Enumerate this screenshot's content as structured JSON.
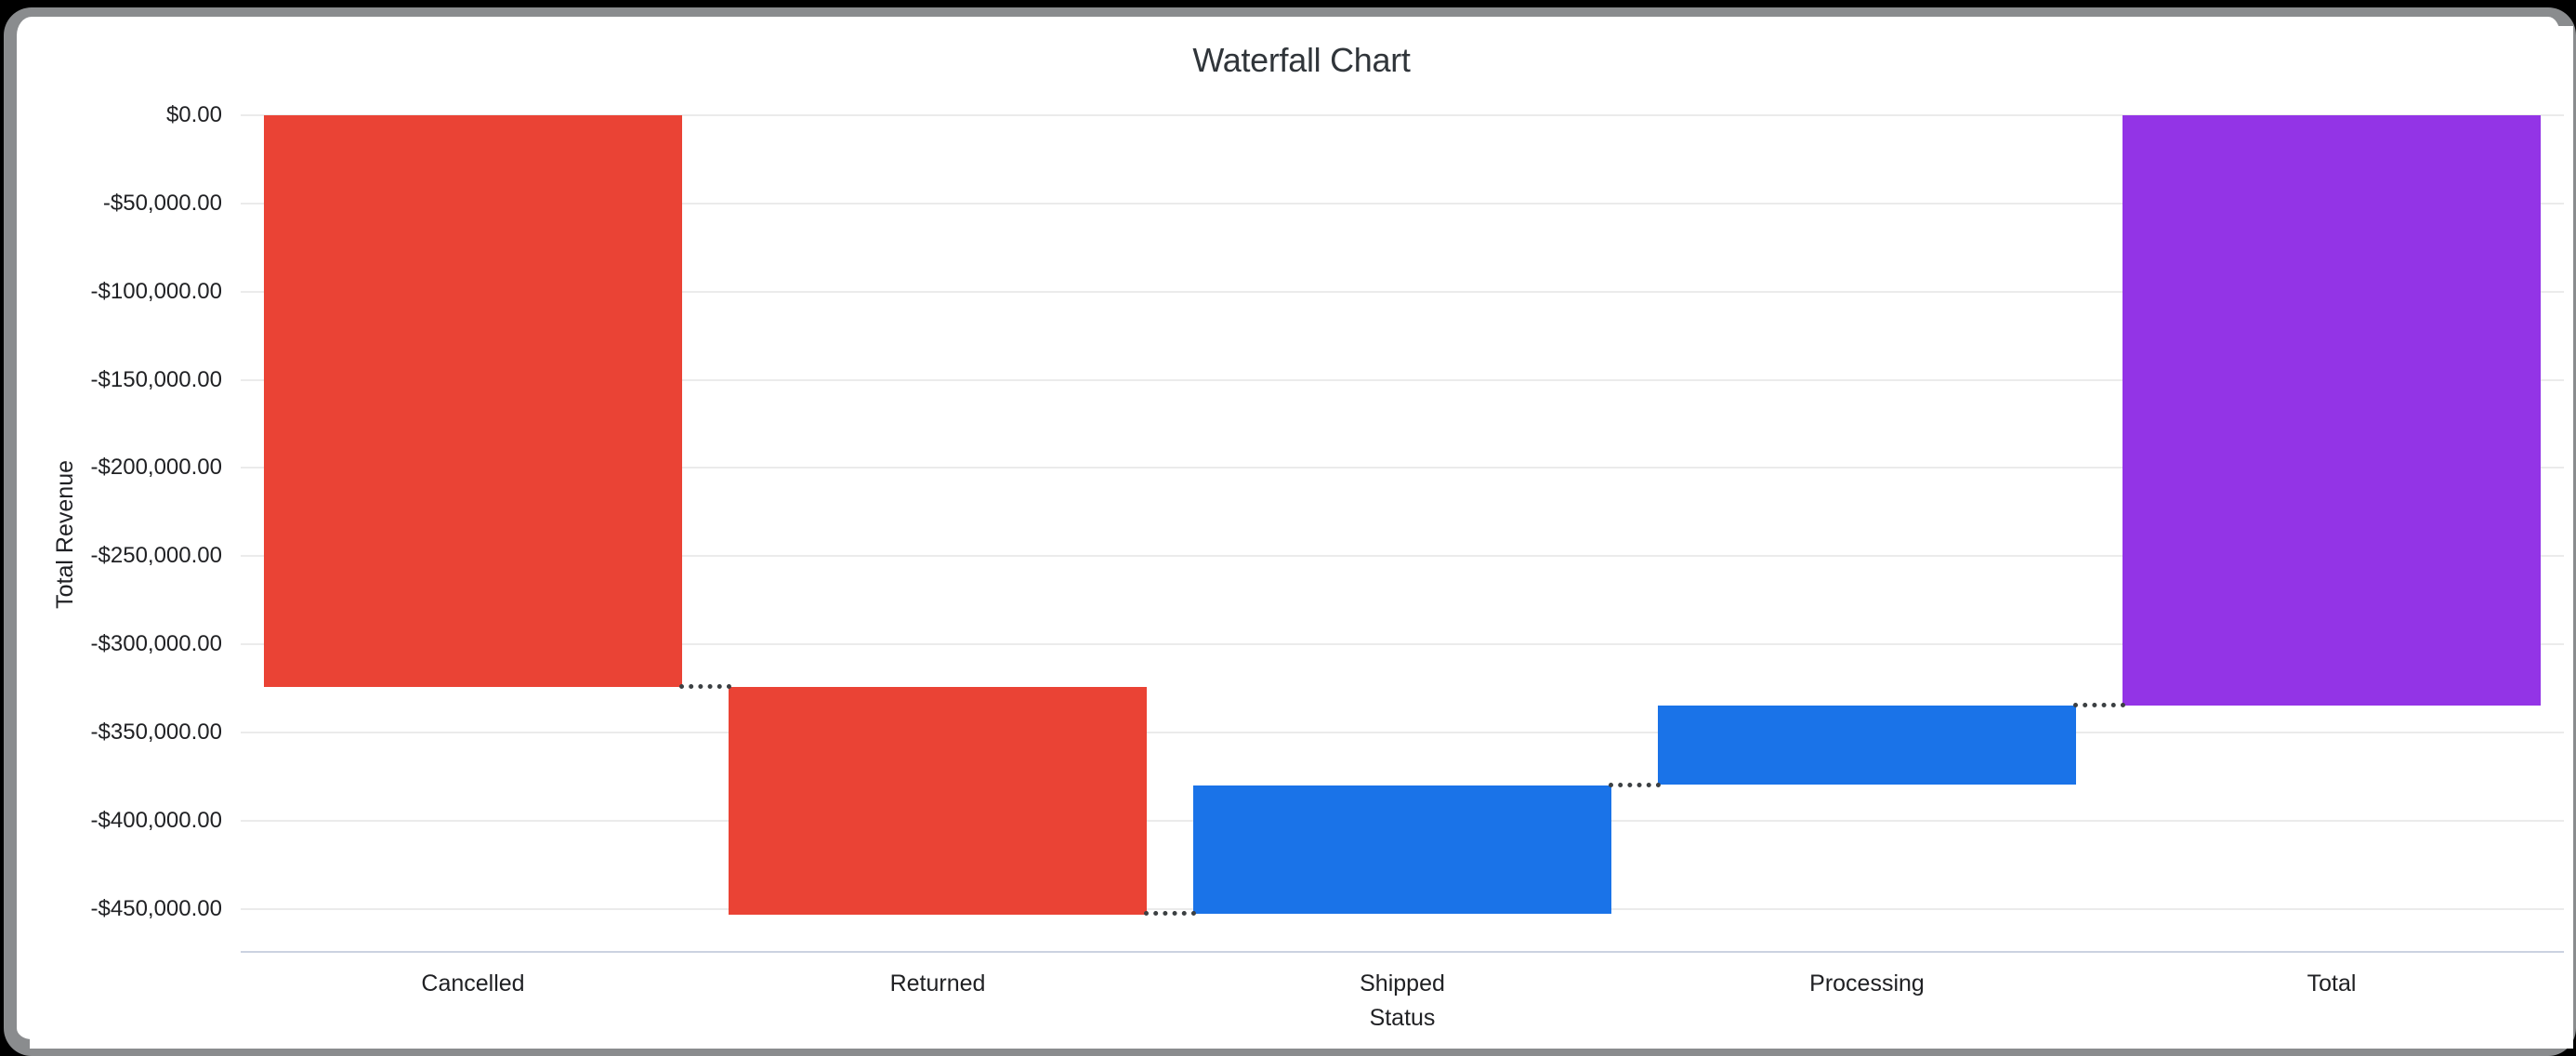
{
  "window": {
    "outer_background": "#000000",
    "frame_border_color": "#8a8c8e",
    "inner_background": "#ffffff"
  },
  "chart_data": {
    "type": "waterfall",
    "title": "Waterfall Chart",
    "xlabel": "Status",
    "ylabel": "Total Revenue",
    "categories": [
      "Cancelled",
      "Returned",
      "Shipped",
      "Processing",
      "Total"
    ],
    "series": [
      {
        "name": "Cancelled",
        "start": 0,
        "end": -324000,
        "delta": -324000,
        "role": "fall",
        "color": "#EA4335"
      },
      {
        "name": "Returned",
        "start": -324000,
        "end": -453000,
        "delta": -129000,
        "role": "fall",
        "color": "#EA4335"
      },
      {
        "name": "Shipped",
        "start": -453000,
        "end": -380000,
        "delta": 73000,
        "role": "rise",
        "color": "#1A73E8"
      },
      {
        "name": "Processing",
        "start": -380000,
        "end": -335000,
        "delta": 45000,
        "role": "rise",
        "color": "#9334E6"
      },
      {
        "name": "Total",
        "start": 0,
        "end": -335000,
        "delta": -335000,
        "role": "total",
        "color": "#9334E6"
      }
    ],
    "series_color_overrides": {
      "Processing": "#1A73E8"
    },
    "y_ticks": [
      {
        "value": 0,
        "label": "$0.00"
      },
      {
        "value": -50000,
        "label": "-$50,000.00"
      },
      {
        "value": -100000,
        "label": "-$100,000.00"
      },
      {
        "value": -150000,
        "label": "-$150,000.00"
      },
      {
        "value": -200000,
        "label": "-$200,000.00"
      },
      {
        "value": -250000,
        "label": "-$250,000.00"
      },
      {
        "value": -300000,
        "label": "-$300,000.00"
      },
      {
        "value": -350000,
        "label": "-$350,000.00"
      },
      {
        "value": -400000,
        "label": "-$400,000.00"
      },
      {
        "value": -450000,
        "label": "-$450,000.00"
      }
    ],
    "ylim": [
      -475000,
      0
    ],
    "grid": true,
    "legend": "none",
    "connector_style": "dotted",
    "gridline_color": "#ebebeb",
    "axis_line_color": "#cbd2e1",
    "connector_color": "#3c4043"
  }
}
